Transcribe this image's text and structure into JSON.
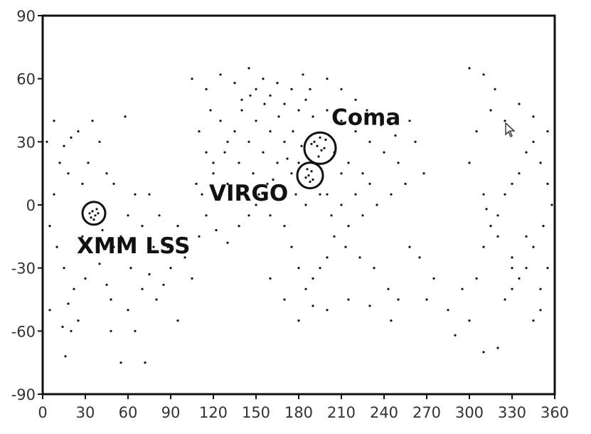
{
  "chart_data": {
    "type": "scatter",
    "title": "",
    "xlabel": "",
    "ylabel": "",
    "xlim": [
      0,
      360
    ],
    "ylim": [
      -90,
      90
    ],
    "xticks": [
      0,
      30,
      60,
      90,
      120,
      150,
      180,
      210,
      240,
      270,
      300,
      330,
      360
    ],
    "yticks": [
      -90,
      -60,
      -30,
      0,
      30,
      60,
      90
    ],
    "grid": false,
    "legend": "none",
    "marker_color": "#111111",
    "annotations": [
      {
        "text": "Coma",
        "x": 203,
        "y": 38
      },
      {
        "text": "VIRGO",
        "x": 117,
        "y": 2
      },
      {
        "text": "XMM LSS",
        "x": 24,
        "y": -23
      }
    ],
    "circles": [
      {
        "name": "coma-circle",
        "x": 195,
        "y": 27,
        "r_deg": 11
      },
      {
        "name": "virgo-circle",
        "x": 188,
        "y": 14,
        "r_deg": 9
      },
      {
        "name": "xmm-lss-circle",
        "x": 36,
        "y": -4,
        "r_deg": 8
      }
    ],
    "series": [
      {
        "values": [
          [
            193,
            28
          ],
          [
            196,
            26
          ],
          [
            191,
            30
          ],
          [
            198,
            27
          ],
          [
            194,
            23
          ],
          [
            189,
            29
          ],
          [
            199,
            31
          ],
          [
            195,
            32
          ],
          [
            187,
            14
          ],
          [
            189,
            16
          ],
          [
            185,
            13
          ],
          [
            190,
            12
          ],
          [
            186,
            17
          ],
          [
            188,
            11
          ],
          [
            35,
            -3
          ],
          [
            37,
            -5
          ],
          [
            34,
            -6
          ],
          [
            38,
            -2
          ],
          [
            33,
            -4
          ],
          [
            36,
            -7
          ],
          [
            39,
            -4
          ],
          [
            20,
            32
          ],
          [
            25,
            35
          ],
          [
            15,
            28
          ],
          [
            12,
            20
          ],
          [
            18,
            15
          ],
          [
            28,
            10
          ],
          [
            8,
            5
          ],
          [
            5,
            -10
          ],
          [
            10,
            -20
          ],
          [
            15,
            -30
          ],
          [
            22,
            -40
          ],
          [
            18,
            -47
          ],
          [
            14,
            -58
          ],
          [
            25,
            -55
          ],
          [
            30,
            -35
          ],
          [
            40,
            -28
          ],
          [
            45,
            -38
          ],
          [
            50,
            -20
          ],
          [
            55,
            -15
          ],
          [
            48,
            -45
          ],
          [
            60,
            -50
          ],
          [
            65,
            -60
          ],
          [
            70,
            -40
          ],
          [
            75,
            -33
          ],
          [
            80,
            -45
          ],
          [
            85,
            -38
          ],
          [
            90,
            -30
          ],
          [
            95,
            -55
          ],
          [
            72,
            -75
          ],
          [
            55,
            -75
          ],
          [
            16,
            -72
          ],
          [
            20,
            -60
          ],
          [
            5,
            -50
          ],
          [
            60,
            -5
          ],
          [
            65,
            5
          ],
          [
            70,
            -10
          ],
          [
            45,
            15
          ],
          [
            50,
            10
          ],
          [
            32,
            20
          ],
          [
            28,
            -15
          ],
          [
            42,
            -12
          ],
          [
            75,
            5
          ],
          [
            82,
            -5
          ],
          [
            88,
            -20
          ],
          [
            100,
            -25
          ],
          [
            110,
            -15
          ],
          [
            105,
            -35
          ],
          [
            95,
            -10
          ],
          [
            58,
            42
          ],
          [
            35,
            40
          ],
          [
            40,
            30
          ],
          [
            8,
            40
          ],
          [
            3,
            30
          ],
          [
            48,
            -60
          ],
          [
            62,
            -30
          ],
          [
            78,
            -20
          ],
          [
            105,
            60
          ],
          [
            115,
            55
          ],
          [
            125,
            62
          ],
          [
            135,
            58
          ],
          [
            140,
            50
          ],
          [
            145,
            65
          ],
          [
            150,
            55
          ],
          [
            155,
            60
          ],
          [
            160,
            52
          ],
          [
            165,
            58
          ],
          [
            170,
            48
          ],
          [
            175,
            55
          ],
          [
            180,
            45
          ],
          [
            185,
            50
          ],
          [
            190,
            42
          ],
          [
            200,
            45
          ],
          [
            210,
            40
          ],
          [
            220,
            35
          ],
          [
            230,
            30
          ],
          [
            240,
            25
          ],
          [
            250,
            20
          ],
          [
            255,
            10
          ],
          [
            245,
            5
          ],
          [
            235,
            0
          ],
          [
            225,
            -5
          ],
          [
            215,
            -10
          ],
          [
            205,
            -15
          ],
          [
            200,
            -25
          ],
          [
            195,
            -30
          ],
          [
            190,
            -35
          ],
          [
            185,
            -40
          ],
          [
            180,
            -30
          ],
          [
            175,
            -20
          ],
          [
            170,
            -10
          ],
          [
            160,
            -5
          ],
          [
            150,
            0
          ],
          [
            140,
            5
          ],
          [
            130,
            10
          ],
          [
            120,
            15
          ],
          [
            115,
            25
          ],
          [
            110,
            35
          ],
          [
            125,
            40
          ],
          [
            135,
            35
          ],
          [
            145,
            30
          ],
          [
            155,
            25
          ],
          [
            165,
            20
          ],
          [
            175,
            15
          ],
          [
            180,
            20
          ],
          [
            170,
            30
          ],
          [
            160,
            35
          ],
          [
            150,
            40
          ],
          [
            140,
            45
          ],
          [
            130,
            30
          ],
          [
            120,
            20
          ],
          [
            118,
            45
          ],
          [
            200,
            5
          ],
          [
            210,
            0
          ],
          [
            220,
            5
          ],
          [
            230,
            10
          ],
          [
            225,
            15
          ],
          [
            215,
            20
          ],
          [
            205,
            25
          ],
          [
            210,
            15
          ],
          [
            195,
            5
          ],
          [
            185,
            0
          ],
          [
            178,
            5
          ],
          [
            168,
            3
          ],
          [
            158,
            10
          ],
          [
            148,
            15
          ],
          [
            138,
            20
          ],
          [
            128,
            25
          ],
          [
            203,
            -5
          ],
          [
            213,
            -20
          ],
          [
            223,
            -25
          ],
          [
            233,
            -30
          ],
          [
            243,
            -40
          ],
          [
            250,
            -45
          ],
          [
            245,
            -55
          ],
          [
            200,
            -50
          ],
          [
            190,
            -48
          ],
          [
            180,
            -55
          ],
          [
            170,
            -45
          ],
          [
            160,
            -35
          ],
          [
            215,
            -45
          ],
          [
            230,
            -48
          ],
          [
            183,
            62
          ],
          [
            188,
            55
          ],
          [
            200,
            60
          ],
          [
            210,
            55
          ],
          [
            220,
            50
          ],
          [
            228,
            45
          ],
          [
            238,
            38
          ],
          [
            248,
            33
          ],
          [
            258,
            40
          ],
          [
            262,
            30
          ],
          [
            268,
            15
          ],
          [
            258,
            -20
          ],
          [
            265,
            -25
          ],
          [
            275,
            -35
          ],
          [
            270,
            -45
          ],
          [
            285,
            -50
          ],
          [
            290,
            -62
          ],
          [
            300,
            -55
          ],
          [
            310,
            -70
          ],
          [
            320,
            -68
          ],
          [
            295,
            -40
          ],
          [
            305,
            -35
          ],
          [
            310,
            -20
          ],
          [
            315,
            -10
          ],
          [
            320,
            -5
          ],
          [
            325,
            5
          ],
          [
            330,
            10
          ],
          [
            335,
            15
          ],
          [
            340,
            25
          ],
          [
            345,
            30
          ],
          [
            350,
            20
          ],
          [
            355,
            10
          ],
          [
            358,
            0
          ],
          [
            352,
            -10
          ],
          [
            345,
            -20
          ],
          [
            340,
            -30
          ],
          [
            335,
            -35
          ],
          [
            330,
            -40
          ],
          [
            325,
            -45
          ],
          [
            350,
            -40
          ],
          [
            355,
            -30
          ],
          [
            345,
            -55
          ],
          [
            330,
            -25
          ],
          [
            320,
            -15
          ],
          [
            310,
            5
          ],
          [
            300,
            20
          ],
          [
            305,
            35
          ],
          [
            315,
            45
          ],
          [
            325,
            40
          ],
          [
            335,
            48
          ],
          [
            345,
            42
          ],
          [
            355,
            35
          ],
          [
            300,
            65
          ],
          [
            310,
            62
          ],
          [
            318,
            55
          ],
          [
            350,
            -50
          ],
          [
            340,
            -15
          ],
          [
            330,
            -30
          ],
          [
            312,
            -2
          ],
          [
            108,
            10
          ],
          [
            112,
            5
          ],
          [
            115,
            -5
          ],
          [
            122,
            -12
          ],
          [
            130,
            -18
          ],
          [
            138,
            -10
          ],
          [
            145,
            -5
          ],
          [
            152,
            5
          ],
          [
            162,
            12
          ],
          [
            172,
            22
          ],
          [
            182,
            28
          ],
          [
            176,
            35
          ],
          [
            166,
            42
          ],
          [
            156,
            48
          ],
          [
            146,
            52
          ]
        ]
      }
    ]
  }
}
